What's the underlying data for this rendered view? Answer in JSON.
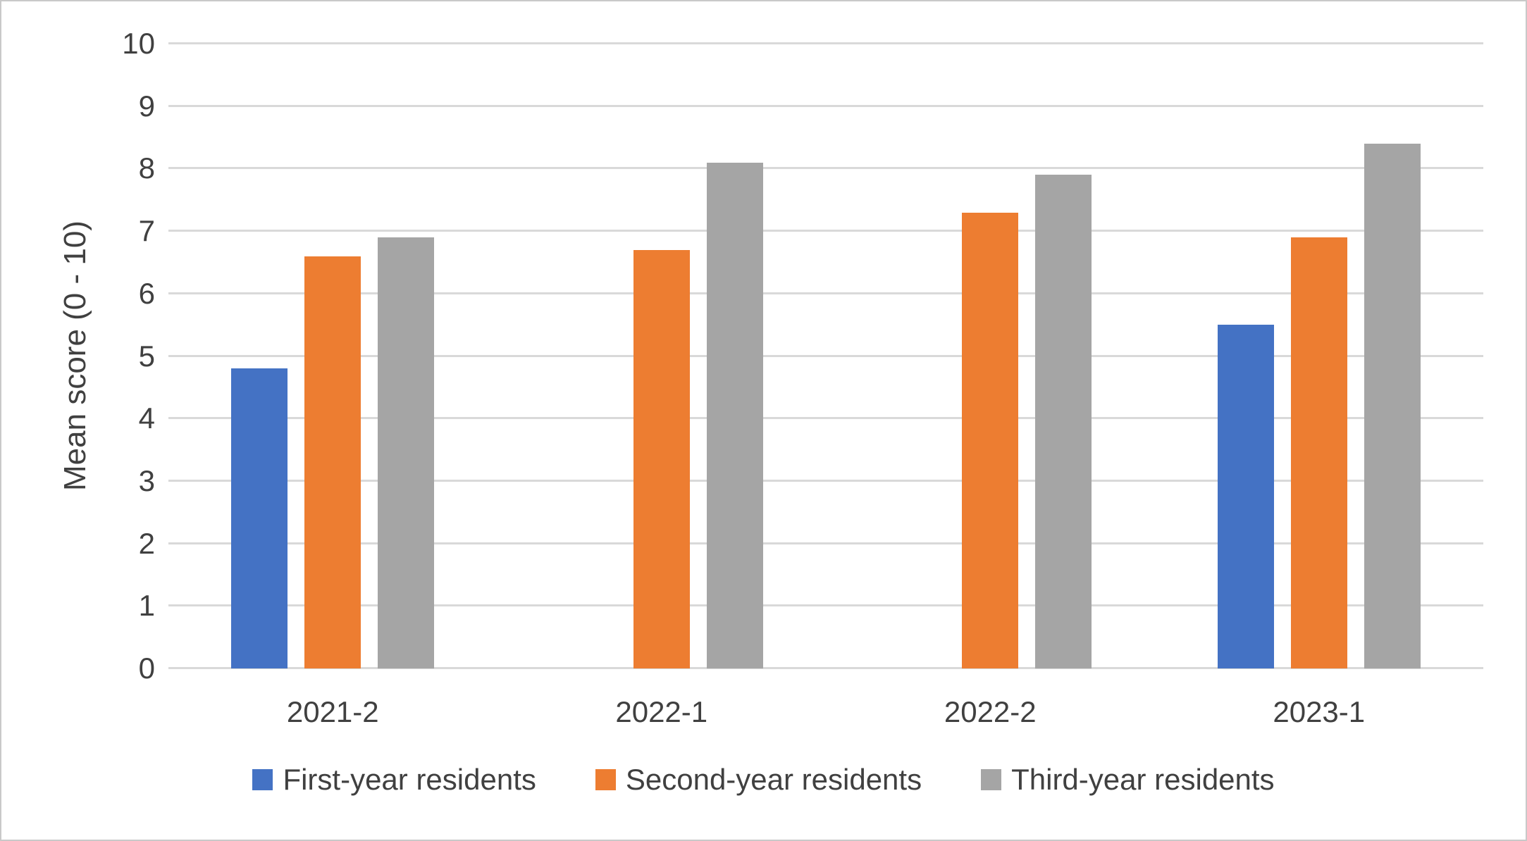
{
  "chart_data": {
    "type": "bar",
    "title": "",
    "categories": [
      "2021-2",
      "2022-1",
      "2022-2",
      "2023-1"
    ],
    "series": [
      {
        "name": "First-year residents",
        "color": "#4472C4",
        "values": [
          4.8,
          null,
          null,
          5.5
        ]
      },
      {
        "name": "Second-year residents",
        "color": "#ED7D31",
        "values": [
          6.6,
          6.7,
          7.3,
          6.9
        ]
      },
      {
        "name": "Third-year residents",
        "color": "#A5A5A5",
        "values": [
          6.9,
          8.1,
          7.9,
          8.4
        ]
      }
    ],
    "xlabel": "",
    "ylabel": "Mean score (0 - 10)",
    "ylim": [
      0,
      10
    ],
    "ytick_step": 1,
    "yticks": [
      "0",
      "1",
      "2",
      "3",
      "4",
      "5",
      "6",
      "7",
      "8",
      "9",
      "10"
    ],
    "grid": true,
    "legend_position": "bottom"
  },
  "colors": {
    "gridline": "#D9D9D9",
    "axis_text": "#404040",
    "background": "#FFFFFF",
    "border": "#C9C9C9"
  }
}
